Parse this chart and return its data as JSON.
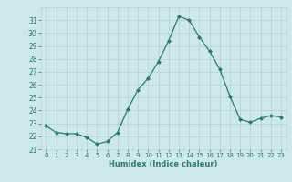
{
  "x": [
    0,
    1,
    2,
    3,
    4,
    5,
    6,
    7,
    8,
    9,
    10,
    11,
    12,
    13,
    14,
    15,
    16,
    17,
    18,
    19,
    20,
    21,
    22,
    23
  ],
  "y": [
    22.8,
    22.3,
    22.2,
    22.2,
    21.9,
    21.4,
    21.6,
    22.3,
    24.1,
    25.6,
    26.5,
    27.8,
    29.4,
    31.3,
    31.0,
    29.7,
    28.6,
    27.2,
    25.1,
    23.3,
    23.1,
    23.4,
    23.6,
    23.5
  ],
  "xlabel": "Humidex (Indice chaleur)",
  "ylim": [
    21,
    32
  ],
  "xlim": [
    -0.5,
    23.5
  ],
  "yticks": [
    21,
    22,
    23,
    24,
    25,
    26,
    27,
    28,
    29,
    30,
    31
  ],
  "xticks": [
    0,
    1,
    2,
    3,
    4,
    5,
    6,
    7,
    8,
    9,
    10,
    11,
    12,
    13,
    14,
    15,
    16,
    17,
    18,
    19,
    20,
    21,
    22,
    23
  ],
  "line_color": "#2d7a6a",
  "marker_color": "#2d7a6a",
  "bg_color": "#cce8e8",
  "grid_color": "#b0d0d0",
  "tick_color": "#2d7a6a",
  "label_color": "#2d7a6a"
}
